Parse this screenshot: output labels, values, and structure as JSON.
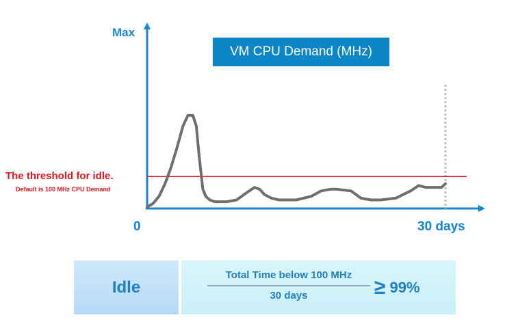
{
  "chart_data": {
    "type": "line",
    "title": "VM CPU Demand (MHz)",
    "xlabel": "",
    "ylabel": "",
    "x_start_label": "0",
    "x_end_label": "30 days",
    "y_top_label": "Max",
    "xlim": [
      0,
      30
    ],
    "ylim": [
      0,
      100
    ],
    "threshold": {
      "y": 17,
      "label": "The threshold for idle.",
      "sublabel": "Default is 100 MHz CPU Demand"
    },
    "end_marker_x": 30,
    "series": [
      {
        "x": [
          0,
          0.6,
          1.2,
          1.8,
          2.4,
          3.0,
          3.6,
          4.1,
          4.6,
          4.95,
          5.2,
          5.6,
          5.9,
          6.3,
          6.8,
          7.3,
          8.0,
          9.0,
          10.0,
          10.8,
          11.3,
          11.8,
          12.5,
          13.3,
          14.0,
          15.0,
          16.5,
          17.5,
          18.5,
          19.0,
          20.5,
          21.5,
          22.5,
          23.5,
          25.0,
          26.5,
          27.3,
          28.0,
          29.0,
          29.6,
          30.0
        ],
        "y": [
          0,
          2,
          6,
          13,
          22,
          33,
          45,
          51,
          51,
          45,
          30,
          10,
          6,
          4,
          3,
          3,
          3,
          4,
          8,
          11,
          10,
          7,
          5,
          4,
          4,
          4,
          6,
          9,
          10,
          10,
          9,
          5,
          4,
          4,
          5,
          9,
          12,
          11,
          11,
          11,
          13
        ]
      }
    ]
  },
  "summary": {
    "label": "Idle",
    "numerator": "Total Time below 100 MHz",
    "denominator": "30 days",
    "symbol": "≥",
    "percent": "99%"
  },
  "colors": {
    "axis": "#1586d2",
    "line": "#6e6e6e",
    "threshold": "#e8141b",
    "title_bg": "#0d86c8",
    "marker": "#bdbdbd"
  }
}
